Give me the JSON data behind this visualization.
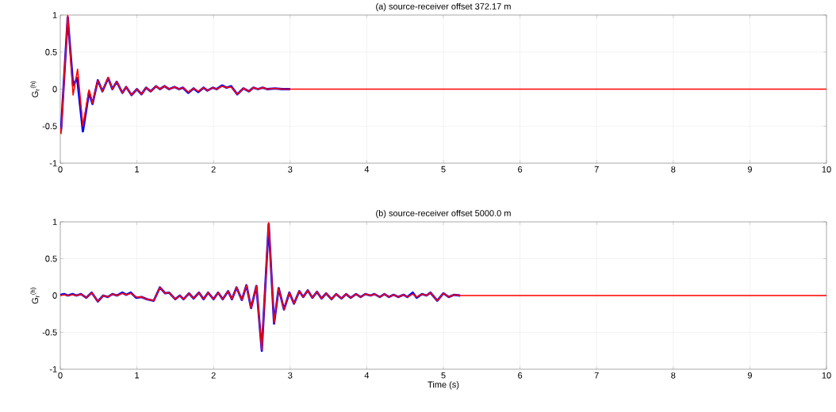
{
  "chart_data": [
    {
      "type": "line",
      "title": "(a) source-receiver offset 372.17 m",
      "ylabel": "G$_{r}$$^{(h)}$",
      "xlim": [
        0,
        10
      ],
      "ylim": [
        -1,
        1
      ],
      "xticks": [
        0,
        1,
        2,
        3,
        4,
        5,
        6,
        7,
        8,
        9,
        10
      ],
      "yticks": [
        -1,
        -0.5,
        0,
        0.5,
        1
      ],
      "grid": true,
      "series": [
        {
          "color": "#0000ff",
          "x": [
            0,
            0.01,
            0.097,
            0.167,
            0.22,
            0.295,
            0.375,
            0.42,
            0.49,
            0.55,
            0.625,
            0.68,
            0.736,
            0.81,
            0.86,
            0.93,
            1.0,
            1.06,
            1.12,
            1.18,
            1.25,
            1.3,
            1.36,
            1.42,
            1.49,
            1.55,
            1.6,
            1.67,
            1.74,
            1.8,
            1.87,
            1.92,
            1.99,
            2.04,
            2.11,
            2.17,
            2.23,
            2.31,
            2.39,
            2.46,
            2.52,
            2.58,
            2.64,
            2.7,
            2.8,
            2.9,
            3.0
          ],
          "values": [
            -0.53,
            -0.55,
            0.97,
            0.05,
            0.15,
            -0.57,
            -0.04,
            -0.2,
            0.12,
            -0.03,
            0.15,
            0.0,
            0.1,
            -0.05,
            0.03,
            -0.08,
            0.0,
            -0.07,
            0.02,
            -0.03,
            0.04,
            0.0,
            0.04,
            0.0,
            0.03,
            0.0,
            0.02,
            -0.05,
            0.01,
            -0.04,
            0.02,
            -0.02,
            0.02,
            0.0,
            0.05,
            0.02,
            0.04,
            -0.07,
            0.01,
            -0.03,
            0.02,
            0.0,
            0.02,
            0.0,
            0.01,
            0.0,
            0.0
          ]
        },
        {
          "color": "#ff0000",
          "x": [
            0,
            0.01,
            0.097,
            0.167,
            0.226,
            0.295,
            0.375,
            0.42,
            0.49,
            0.55,
            0.625,
            0.68,
            0.736,
            0.81,
            0.86,
            0.93,
            1.0,
            1.06,
            1.12,
            1.18,
            1.25,
            1.3,
            1.36,
            1.42,
            1.49,
            1.55,
            1.6,
            1.67,
            1.74,
            1.8,
            1.87,
            1.92,
            1.99,
            2.04,
            2.11,
            2.17,
            2.23,
            2.31,
            2.39,
            2.46,
            2.52,
            2.58,
            2.64,
            2.7,
            2.8,
            2.9,
            3.0,
            3.5,
            10
          ],
          "values": [
            -0.53,
            -0.6,
            1.0,
            -0.08,
            0.27,
            -0.5,
            -0.01,
            -0.19,
            0.12,
            -0.03,
            0.16,
            0.0,
            0.1,
            -0.05,
            0.03,
            -0.08,
            0.0,
            -0.07,
            0.02,
            -0.03,
            0.04,
            0.0,
            0.04,
            0.0,
            0.03,
            0.0,
            0.02,
            -0.04,
            0.01,
            -0.03,
            0.02,
            -0.02,
            0.02,
            0.0,
            0.04,
            0.02,
            0.03,
            -0.07,
            0.01,
            -0.03,
            0.02,
            0.0,
            0.02,
            0.0,
            0.01,
            0.0,
            0.0,
            0.0,
            0.0
          ]
        }
      ]
    },
    {
      "type": "line",
      "title": "(b) source-receiver offset 5000.0 m",
      "xlabel": "Time (s)",
      "ylabel": "G$_{r}$$^{(h)}$",
      "xlim": [
        0,
        10
      ],
      "ylim": [
        -1,
        1
      ],
      "xticks": [
        0,
        1,
        2,
        3,
        4,
        5,
        6,
        7,
        8,
        9,
        10
      ],
      "yticks": [
        -1,
        -0.5,
        0,
        0.5,
        1
      ],
      "grid": true,
      "series": [
        {
          "color": "#0000ff",
          "x": [
            0,
            0.05,
            0.1,
            0.16,
            0.21,
            0.27,
            0.34,
            0.41,
            0.49,
            0.56,
            0.62,
            0.68,
            0.74,
            0.81,
            0.86,
            0.92,
            0.99,
            1.06,
            1.13,
            1.22,
            1.3,
            1.37,
            1.42,
            1.5,
            1.56,
            1.61,
            1.68,
            1.74,
            1.81,
            1.87,
            1.93,
            2.0,
            2.06,
            2.12,
            2.19,
            2.24,
            2.3,
            2.37,
            2.43,
            2.49,
            2.56,
            2.63,
            2.72,
            2.79,
            2.85,
            2.92,
            2.99,
            3.05,
            3.12,
            3.17,
            3.23,
            3.29,
            3.35,
            3.41,
            3.47,
            3.54,
            3.6,
            3.67,
            3.73,
            3.79,
            3.86,
            3.92,
            3.98,
            4.05,
            4.1,
            4.17,
            4.23,
            4.29,
            4.35,
            4.41,
            4.48,
            4.53,
            4.6,
            4.65,
            4.72,
            4.78,
            4.83,
            4.92,
            5.0,
            5.07,
            5.14,
            5.22
          ],
          "values": [
            0.01,
            0.02,
            0.0,
            0.02,
            0.0,
            0.02,
            -0.03,
            0.04,
            -0.08,
            0.0,
            -0.02,
            0.02,
            0.0,
            0.04,
            0.01,
            0.04,
            -0.03,
            -0.02,
            -0.05,
            -0.07,
            0.11,
            0.03,
            0.04,
            -0.05,
            0.0,
            -0.05,
            0.03,
            -0.04,
            0.04,
            -0.05,
            0.04,
            -0.05,
            0.04,
            -0.05,
            0.06,
            -0.05,
            0.11,
            -0.06,
            0.14,
            -0.17,
            0.13,
            -0.75,
            0.97,
            -0.38,
            0.1,
            -0.19,
            0.04,
            -0.11,
            0.06,
            -0.02,
            0.07,
            -0.03,
            0.05,
            -0.04,
            0.03,
            -0.05,
            0.02,
            -0.04,
            0.02,
            -0.03,
            0.02,
            -0.02,
            0.02,
            0.0,
            0.02,
            -0.02,
            0.02,
            -0.02,
            0.01,
            -0.02,
            0.01,
            -0.02,
            0.04,
            -0.03,
            0.02,
            0.0,
            0.04,
            -0.07,
            0.03,
            -0.02,
            0.01,
            0.0
          ]
        },
        {
          "color": "#ff0000",
          "x": [
            0,
            0.05,
            0.1,
            0.16,
            0.21,
            0.27,
            0.34,
            0.41,
            0.49,
            0.56,
            0.62,
            0.68,
            0.74,
            0.81,
            0.86,
            0.92,
            0.99,
            1.06,
            1.13,
            1.22,
            1.3,
            1.37,
            1.42,
            1.5,
            1.56,
            1.61,
            1.68,
            1.74,
            1.81,
            1.87,
            1.93,
            2.0,
            2.06,
            2.12,
            2.19,
            2.24,
            2.3,
            2.37,
            2.43,
            2.49,
            2.56,
            2.63,
            2.72,
            2.79,
            2.85,
            2.92,
            2.99,
            3.05,
            3.12,
            3.17,
            3.23,
            3.29,
            3.35,
            3.41,
            3.47,
            3.54,
            3.6,
            3.67,
            3.73,
            3.79,
            3.86,
            3.92,
            3.98,
            4.05,
            4.1,
            4.17,
            4.23,
            4.29,
            4.35,
            4.41,
            4.48,
            4.53,
            4.6,
            4.65,
            4.72,
            4.78,
            4.83,
            4.92,
            5.0,
            5.07,
            5.14,
            5.22,
            5.36,
            6,
            10
          ],
          "values": [
            0.0,
            0.01,
            0.0,
            0.01,
            0.0,
            0.02,
            -0.03,
            0.04,
            -0.08,
            0.0,
            -0.02,
            0.02,
            0.0,
            0.03,
            0.01,
            0.03,
            -0.02,
            -0.02,
            -0.05,
            -0.07,
            0.11,
            0.03,
            0.04,
            -0.05,
            0.0,
            -0.05,
            0.03,
            -0.04,
            0.04,
            -0.05,
            0.04,
            -0.05,
            0.04,
            -0.05,
            0.06,
            -0.05,
            0.11,
            -0.06,
            0.14,
            -0.17,
            0.13,
            -0.74,
            0.99,
            -0.37,
            0.1,
            -0.19,
            0.04,
            -0.11,
            0.06,
            -0.02,
            0.07,
            -0.03,
            0.05,
            -0.04,
            0.03,
            -0.05,
            0.02,
            -0.04,
            0.02,
            -0.03,
            0.02,
            -0.02,
            0.02,
            0.0,
            0.02,
            -0.02,
            0.02,
            -0.02,
            0.01,
            -0.02,
            0.01,
            -0.02,
            0.02,
            -0.02,
            0.02,
            0.0,
            0.04,
            -0.07,
            0.03,
            -0.02,
            0.01,
            0.0,
            0.0,
            0.0,
            0.0
          ]
        }
      ]
    }
  ]
}
